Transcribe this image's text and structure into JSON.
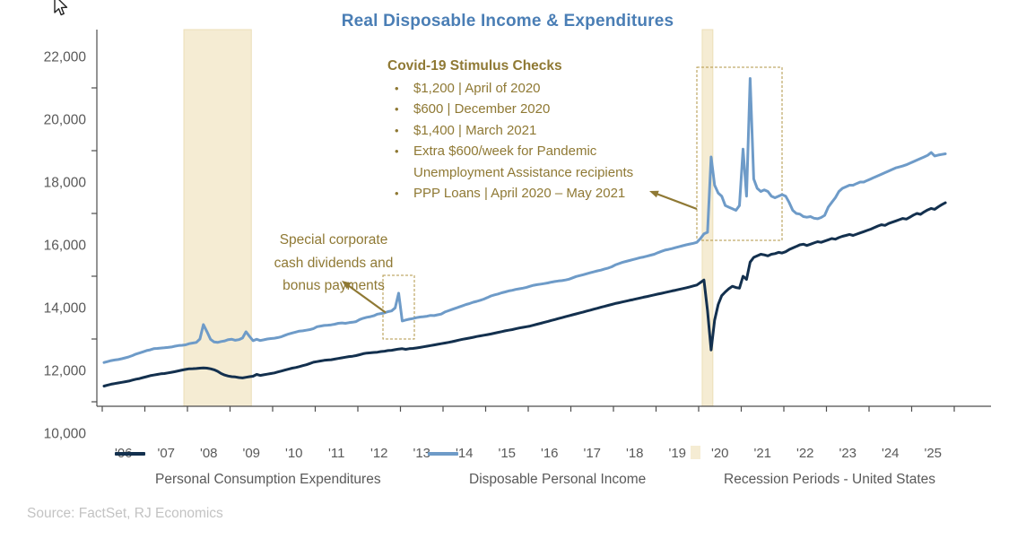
{
  "title": {
    "text": "Real Disposable Income & Expenditures",
    "color": "#4a7eb5"
  },
  "source": {
    "text": "Source: FactSet, RJ Economics",
    "color": "#c3c3c3"
  },
  "annotations": {
    "covid": {
      "heading": "Covid-19 Stimulus Checks",
      "bullets": [
        "$1,200 | April of 2020",
        "$600 | December 2020",
        "$1,400 | March 2021",
        "Extra $600/week for Pandemic Unemployment Assistance recipients",
        "PPP Loans | April 2020 – May 2021"
      ],
      "color": "#8f7934"
    },
    "dividends": {
      "lines": [
        "Special corporate",
        "cash dividends and",
        "bonus payments"
      ],
      "color": "#8f7934"
    }
  },
  "legend": {
    "text_color": "#595959",
    "items": [
      {
        "label": "Personal Consumption Expenditures",
        "marker": "line",
        "color": "#13304e"
      },
      {
        "label": "Disposable Personal Income",
        "marker": "line",
        "color": "#6e9bc8"
      },
      {
        "label": "Recession Periods - United States",
        "marker": "rect",
        "color": "#f5ecd3"
      }
    ]
  },
  "chart_data": {
    "type": "line",
    "title": "Real Disposable Income & Expenditures",
    "frequency": "monthly",
    "start": "2006-01",
    "end": "2025-10",
    "units": "billions of chained dollars",
    "grid": false,
    "y_axis": {
      "label_ticks": [
        10000,
        12000,
        14000,
        16000,
        18000,
        20000,
        22000
      ],
      "minor_ticks": [
        11000,
        13000,
        15000,
        17000,
        19000,
        21000
      ]
    },
    "x_tick_labels": [
      "'06",
      "'07",
      "'08",
      "'09",
      "'10",
      "'11",
      "'12",
      "'13",
      "'14",
      "'15",
      "'16",
      "'17",
      "'18",
      "'19",
      "'20",
      "'21",
      "'22",
      "'23",
      "'24",
      "'25"
    ],
    "axis_text_color": "#595959",
    "axis_line_color": "#4d4d4d",
    "recession_fill": "#f5ecd3",
    "recession_edge": "#ecdfb8",
    "recession_periods": [
      {
        "from": "2007-12",
        "to": "2009-06"
      },
      {
        "from": "2020-02",
        "to": "2020-04"
      }
    ],
    "series": [
      {
        "name": "Personal Consumption Expenditures",
        "color": "#13304e",
        "values": [
          11500,
          11530,
          11560,
          11580,
          11600,
          11620,
          11640,
          11660,
          11690,
          11720,
          11740,
          11770,
          11800,
          11830,
          11850,
          11870,
          11890,
          11900,
          11920,
          11940,
          11960,
          11985,
          12010,
          12030,
          12050,
          12055,
          12060,
          12070,
          12080,
          12070,
          12050,
          12020,
          11970,
          11900,
          11850,
          11820,
          11800,
          11790,
          11770,
          11760,
          11780,
          11800,
          11815,
          11870,
          11840,
          11860,
          11880,
          11900,
          11920,
          11950,
          11980,
          12010,
          12040,
          12070,
          12090,
          12120,
          12150,
          12180,
          12220,
          12260,
          12280,
          12300,
          12320,
          12330,
          12340,
          12360,
          12380,
          12400,
          12420,
          12440,
          12450,
          12470,
          12500,
          12530,
          12550,
          12560,
          12570,
          12580,
          12600,
          12610,
          12630,
          12640,
          12660,
          12680,
          12690,
          12670,
          12690,
          12700,
          12715,
          12730,
          12750,
          12770,
          12790,
          12810,
          12830,
          12850,
          12870,
          12890,
          12915,
          12940,
          12965,
          12990,
          13010,
          13030,
          13055,
          13080,
          13100,
          13120,
          13140,
          13160,
          13185,
          13210,
          13235,
          13260,
          13280,
          13300,
          13325,
          13350,
          13370,
          13390,
          13410,
          13440,
          13470,
          13500,
          13530,
          13560,
          13590,
          13620,
          13650,
          13680,
          13710,
          13740,
          13770,
          13800,
          13830,
          13860,
          13890,
          13920,
          13950,
          13980,
          14010,
          14040,
          14070,
          14100,
          14130,
          14155,
          14180,
          14205,
          14230,
          14255,
          14280,
          14305,
          14330,
          14355,
          14380,
          14405,
          14430,
          14455,
          14480,
          14505,
          14530,
          14555,
          14580,
          14605,
          14630,
          14660,
          14690,
          14720,
          14800,
          14880,
          13900,
          12650,
          13600,
          14100,
          14380,
          14500,
          14600,
          14680,
          14640,
          14620,
          15000,
          14900,
          15450,
          15600,
          15650,
          15700,
          15680,
          15650,
          15700,
          15720,
          15760,
          15740,
          15780,
          15850,
          15900,
          15950,
          16000,
          16020,
          15980,
          16020,
          16060,
          16100,
          16080,
          16120,
          16160,
          16200,
          16180,
          16230,
          16270,
          16300,
          16330,
          16300,
          16340,
          16380,
          16420,
          16460,
          16500,
          16550,
          16600,
          16640,
          16620,
          16680,
          16720,
          16760,
          16800,
          16840,
          16820,
          16880,
          16950,
          17000,
          16970,
          17050,
          17110,
          17160,
          17130,
          17210,
          17280,
          17340
        ]
      },
      {
        "name": "Disposable Personal Income",
        "color": "#6e9bc8",
        "values": [
          12250,
          12280,
          12310,
          12330,
          12345,
          12370,
          12400,
          12430,
          12470,
          12520,
          12555,
          12590,
          12630,
          12655,
          12690,
          12700,
          12710,
          12720,
          12730,
          12745,
          12770,
          12790,
          12800,
          12815,
          12850,
          12870,
          12890,
          13000,
          13460,
          13230,
          12990,
          12905,
          12890,
          12920,
          12940,
          12980,
          12990,
          12960,
          12980,
          13030,
          13230,
          13080,
          12945,
          12990,
          12950,
          12975,
          13000,
          13015,
          13025,
          13045,
          13075,
          13120,
          13160,
          13190,
          13220,
          13250,
          13260,
          13280,
          13300,
          13330,
          13390,
          13410,
          13430,
          13440,
          13450,
          13470,
          13500,
          13510,
          13500,
          13520,
          13535,
          13555,
          13620,
          13660,
          13690,
          13710,
          13740,
          13790,
          13810,
          13830,
          13870,
          13895,
          13990,
          14460,
          13575,
          13605,
          13630,
          13650,
          13680,
          13700,
          13710,
          13725,
          13750,
          13745,
          13770,
          13795,
          13860,
          13900,
          13940,
          13980,
          14020,
          14060,
          14100,
          14130,
          14170,
          14200,
          14235,
          14270,
          14320,
          14370,
          14405,
          14435,
          14470,
          14500,
          14530,
          14550,
          14580,
          14600,
          14620,
          14645,
          14680,
          14710,
          14730,
          14750,
          14765,
          14785,
          14810,
          14830,
          14850,
          14860,
          14880,
          14905,
          14950,
          14990,
          15020,
          15050,
          15080,
          15110,
          15140,
          15170,
          15195,
          15230,
          15260,
          15300,
          15360,
          15400,
          15440,
          15470,
          15500,
          15530,
          15560,
          15590,
          15610,
          15640,
          15670,
          15700,
          15750,
          15790,
          15830,
          15855,
          15880,
          15910,
          15940,
          15970,
          16000,
          16025,
          16050,
          16080,
          16200,
          16350,
          16400,
          18800,
          17900,
          17650,
          17550,
          17250,
          17200,
          17150,
          17100,
          17250,
          19050,
          17550,
          21300,
          18100,
          17800,
          17700,
          17750,
          17700,
          17550,
          17500,
          17550,
          17600,
          17550,
          17350,
          17100,
          17000,
          16980,
          16900,
          16880,
          16900,
          16850,
          16830,
          16870,
          16940,
          17200,
          17350,
          17500,
          17700,
          17800,
          17850,
          17900,
          17900,
          17950,
          18000,
          18000,
          18050,
          18100,
          18150,
          18200,
          18250,
          18300,
          18350,
          18400,
          18450,
          18480,
          18510,
          18550,
          18600,
          18650,
          18700,
          18750,
          18800,
          18850,
          18940,
          18830,
          18860,
          18880,
          18900
        ]
      }
    ],
    "legend_position": "bottom"
  }
}
